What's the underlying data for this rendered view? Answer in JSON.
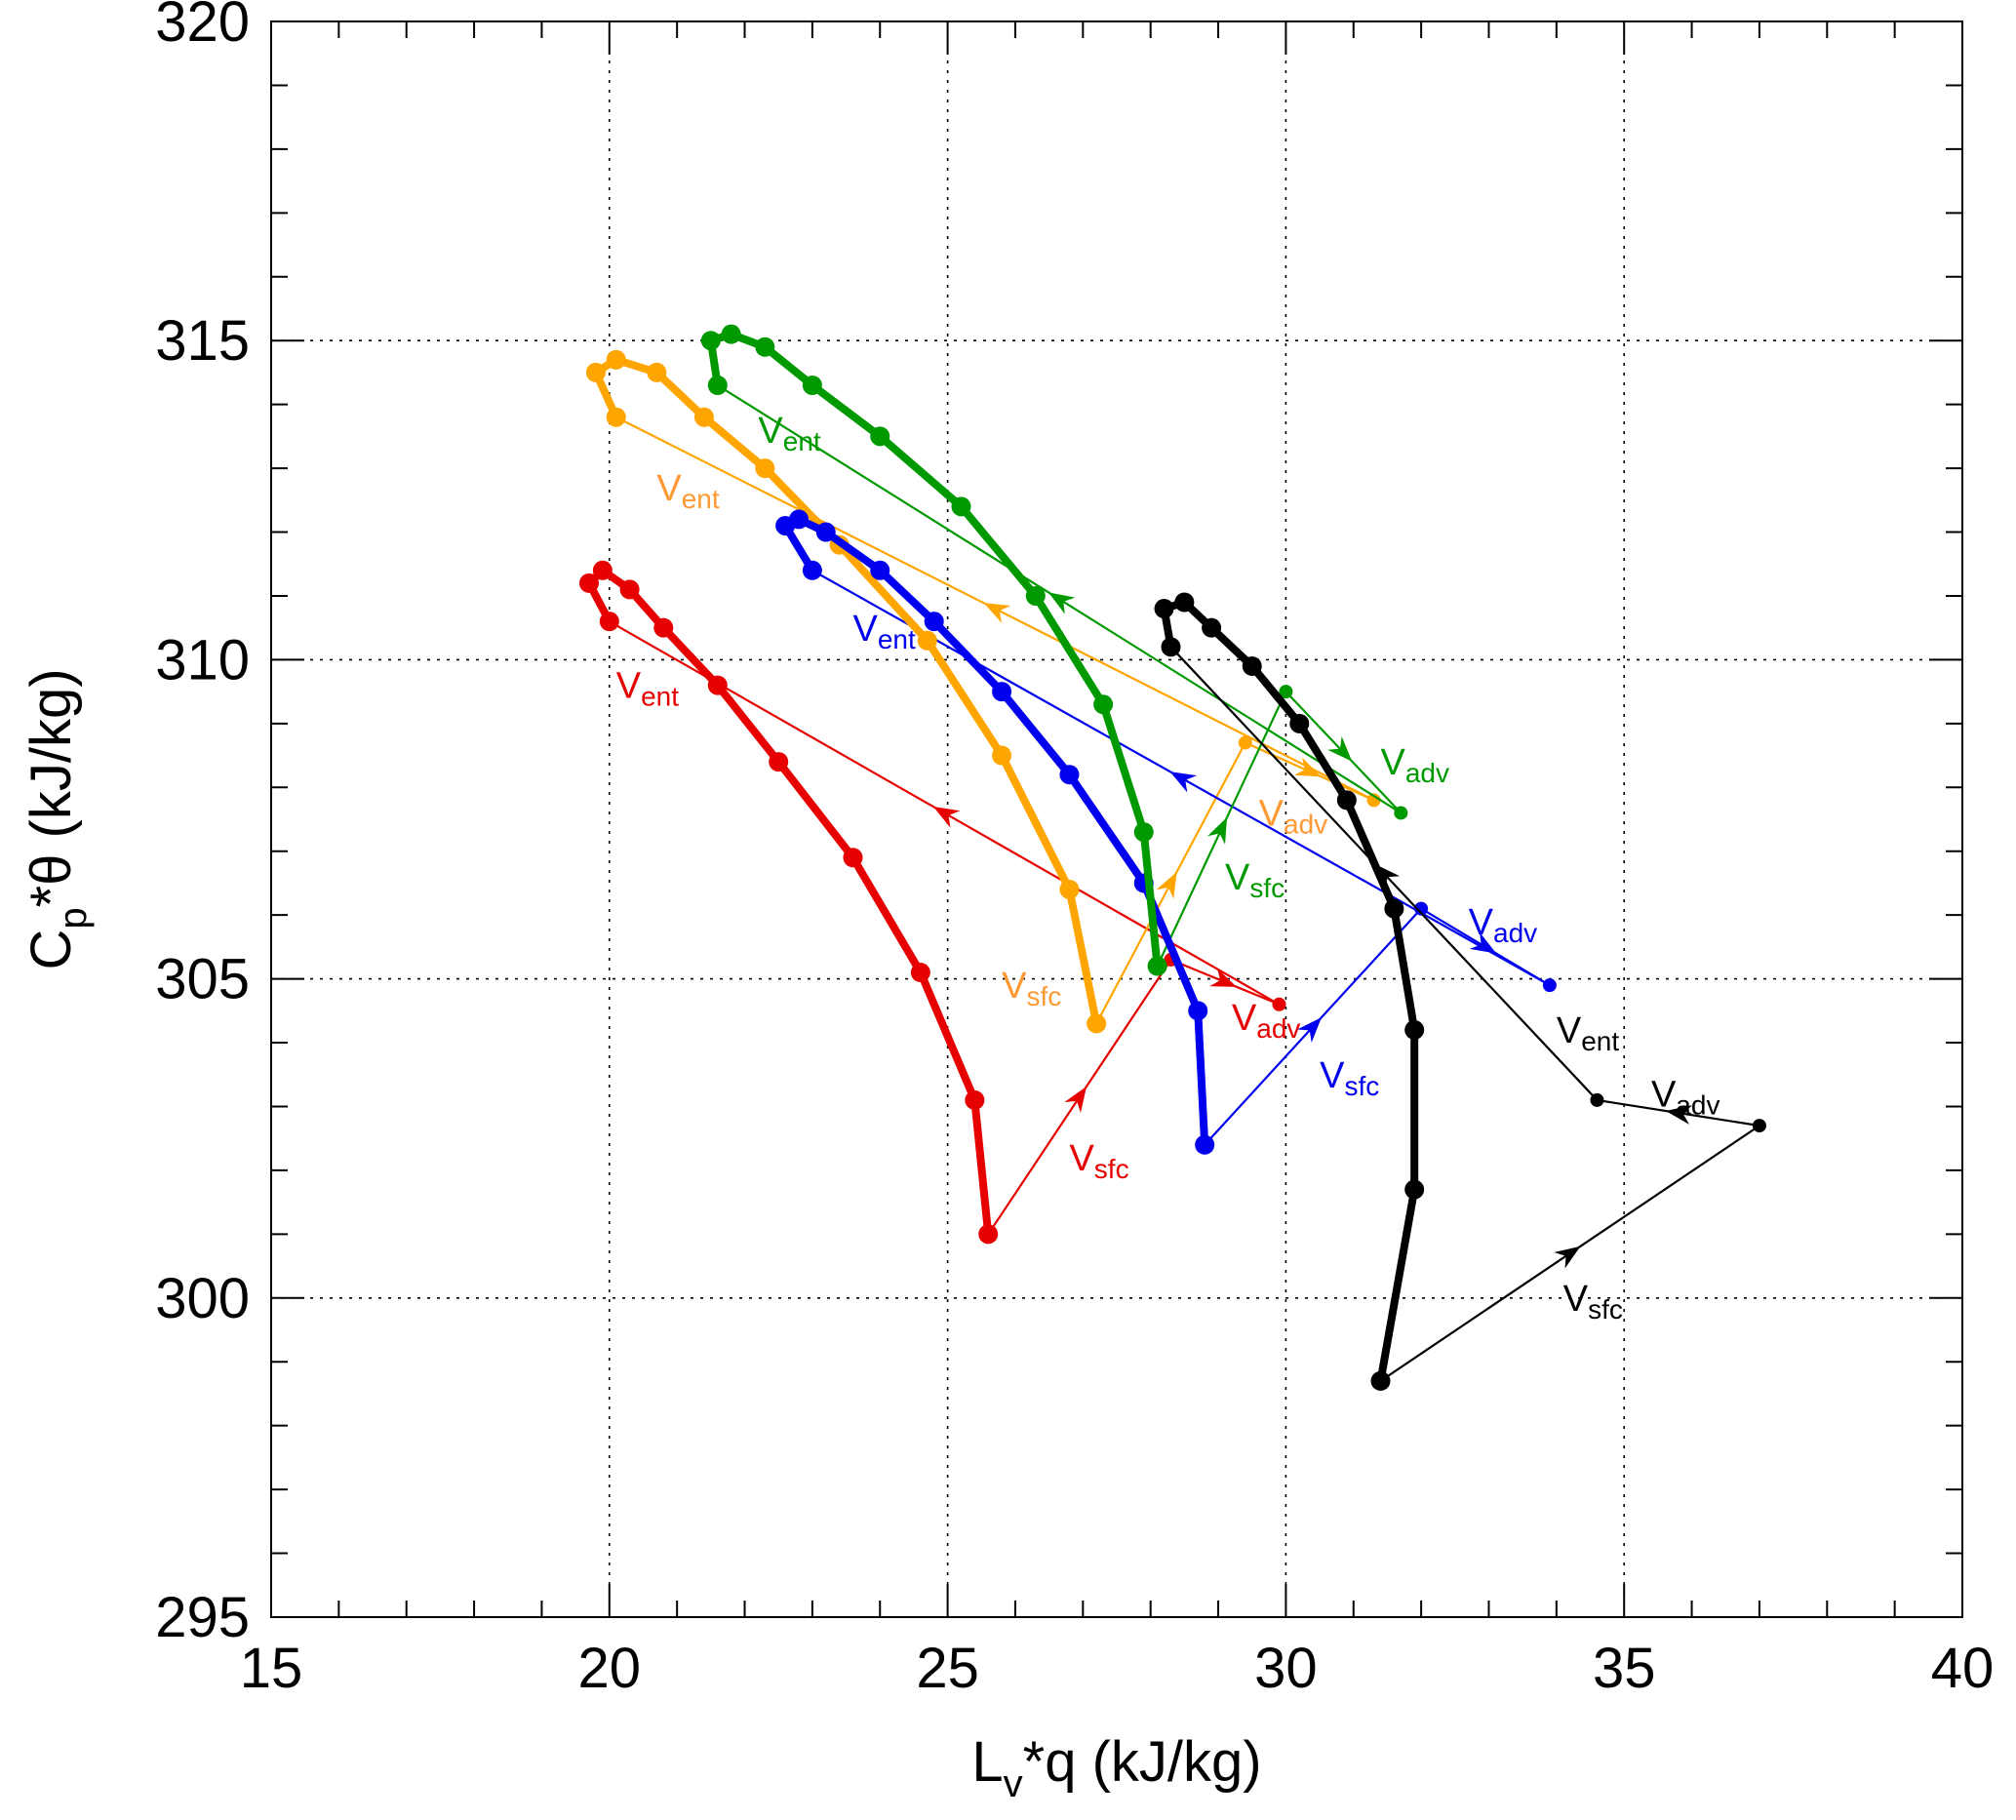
{
  "chart_data": {
    "type": "line",
    "xlabel": {
      "main": "L",
      "sub": "v",
      "rest": "*q (kJ/kg)"
    },
    "ylabel": {
      "main": "C",
      "sub": "p",
      "rest": "*θ (kJ/kg)"
    },
    "xlim": [
      15,
      40
    ],
    "ylim": [
      295,
      320
    ],
    "x_ticks": [
      15,
      20,
      25,
      30,
      35,
      40
    ],
    "y_ticks": [
      295,
      300,
      305,
      310,
      315,
      320
    ],
    "x_tick_labels": [
      "15",
      "20",
      "25",
      "30",
      "35",
      "40"
    ],
    "y_tick_labels": [
      "295",
      "300",
      "305",
      "310",
      "315",
      "320"
    ],
    "x_minor_step": 1,
    "y_minor_step": 1,
    "grid": "dotted, major ticks",
    "series": [
      {
        "color": "#e60000",
        "label_color": "#e60000",
        "trajectory": [
          [
            25.6,
            301.0
          ],
          [
            25.4,
            303.1
          ],
          [
            24.6,
            305.1
          ],
          [
            23.6,
            306.9
          ],
          [
            22.5,
            308.4
          ],
          [
            21.6,
            309.6
          ],
          [
            20.8,
            310.5
          ],
          [
            20.3,
            311.1
          ],
          [
            19.9,
            311.4
          ],
          [
            19.7,
            311.2
          ],
          [
            20.0,
            310.6
          ]
        ],
        "budget": {
          "start": [
            25.6,
            301.0
          ],
          "sfc": [
            28.3,
            305.3
          ],
          "adv": [
            29.9,
            304.6
          ],
          "ent": [
            20.0,
            310.6
          ],
          "labels": {
            "sfc": {
              "main": "V",
              "sub": "sfc",
              "at": [
                26.8,
                302.0
              ]
            },
            "adv": {
              "main": "V",
              "sub": "adv",
              "at": [
                29.2,
                304.2
              ]
            },
            "ent": {
              "main": "V",
              "sub": "ent",
              "at": [
                20.1,
                309.4
              ]
            }
          }
        }
      },
      {
        "color": "#ffa500",
        "label_color": "#ff9933",
        "trajectory": [
          [
            27.2,
            304.3
          ],
          [
            26.8,
            306.4
          ],
          [
            25.8,
            308.5
          ],
          [
            24.7,
            310.3
          ],
          [
            23.4,
            311.8
          ],
          [
            22.3,
            313.0
          ],
          [
            21.4,
            313.8
          ],
          [
            20.7,
            314.5
          ],
          [
            20.1,
            314.7
          ],
          [
            19.8,
            314.5
          ],
          [
            20.1,
            313.8
          ]
        ],
        "budget": {
          "start": [
            27.2,
            304.3
          ],
          "sfc": [
            29.4,
            308.7
          ],
          "adv": [
            31.3,
            307.8
          ],
          "ent": [
            20.1,
            313.8
          ],
          "labels": {
            "sfc": {
              "main": "V",
              "sub": "sfc",
              "at": [
                25.8,
                304.7
              ]
            },
            "adv": {
              "main": "V",
              "sub": "adv",
              "at": [
                29.6,
                307.4
              ]
            },
            "ent": {
              "main": "V",
              "sub": "ent",
              "at": [
                20.7,
                312.5
              ]
            }
          }
        }
      },
      {
        "color": "#0000ee",
        "label_color": "#0000ee",
        "trajectory": [
          [
            28.8,
            302.4
          ],
          [
            28.7,
            304.5
          ],
          [
            27.9,
            306.5
          ],
          [
            26.8,
            308.2
          ],
          [
            25.8,
            309.5
          ],
          [
            24.8,
            310.6
          ],
          [
            24.0,
            311.4
          ],
          [
            23.2,
            312.0
          ],
          [
            22.8,
            312.2
          ],
          [
            22.6,
            312.1
          ],
          [
            23.0,
            311.4
          ]
        ],
        "budget": {
          "start": [
            28.8,
            302.4
          ],
          "sfc": [
            32.0,
            306.1
          ],
          "adv": [
            33.9,
            304.9
          ],
          "ent": [
            23.0,
            311.4
          ],
          "labels": {
            "sfc": {
              "main": "V",
              "sub": "sfc",
              "at": [
                30.5,
                303.3
              ]
            },
            "adv": {
              "main": "V",
              "sub": "adv",
              "at": [
                32.7,
                305.7
              ]
            },
            "ent": {
              "main": "V",
              "sub": "ent",
              "at": [
                23.6,
                310.3
              ]
            }
          }
        }
      },
      {
        "color": "#009900",
        "label_color": "#009900",
        "trajectory": [
          [
            28.1,
            305.2
          ],
          [
            27.9,
            307.3
          ],
          [
            27.3,
            309.3
          ],
          [
            26.3,
            311.0
          ],
          [
            25.2,
            312.4
          ],
          [
            24.0,
            313.5
          ],
          [
            23.0,
            314.3
          ],
          [
            22.3,
            314.9
          ],
          [
            21.8,
            315.1
          ],
          [
            21.5,
            315.0
          ],
          [
            21.6,
            314.3
          ]
        ],
        "budget": {
          "start": [
            28.1,
            305.2
          ],
          "sfc": [
            30.0,
            309.5
          ],
          "adv": [
            31.7,
            307.6
          ],
          "ent": [
            21.6,
            314.3
          ],
          "labels": {
            "sfc": {
              "main": "V",
              "sub": "sfc",
              "at": [
                29.1,
                306.4
              ]
            },
            "adv": {
              "main": "V",
              "sub": "adv",
              "at": [
                31.4,
                308.2
              ]
            },
            "ent": {
              "main": "V",
              "sub": "ent",
              "at": [
                22.2,
                313.4
              ]
            }
          }
        }
      },
      {
        "color": "#000000",
        "label_color": "#000000",
        "trajectory": [
          [
            31.4,
            298.7
          ],
          [
            31.9,
            301.7
          ],
          [
            31.9,
            304.2
          ],
          [
            31.6,
            306.1
          ],
          [
            30.9,
            307.8
          ],
          [
            30.2,
            309.0
          ],
          [
            29.5,
            309.9
          ],
          [
            28.9,
            310.5
          ],
          [
            28.5,
            310.9
          ],
          [
            28.2,
            310.8
          ],
          [
            28.3,
            310.2
          ]
        ],
        "budget": {
          "start": [
            31.4,
            298.7
          ],
          "sfc": [
            37.0,
            302.7
          ],
          "adv": [
            34.6,
            303.1
          ],
          "ent": [
            28.3,
            310.2
          ],
          "labels": {
            "sfc": {
              "main": "V",
              "sub": "sfc",
              "at": [
                34.1,
                299.8
              ]
            },
            "adv": {
              "main": "V",
              "sub": "adv",
              "at": [
                35.4,
                303.0
              ]
            },
            "ent": {
              "main": "V",
              "sub": "ent",
              "at": [
                34.0,
                304.0
              ]
            }
          }
        }
      }
    ]
  }
}
